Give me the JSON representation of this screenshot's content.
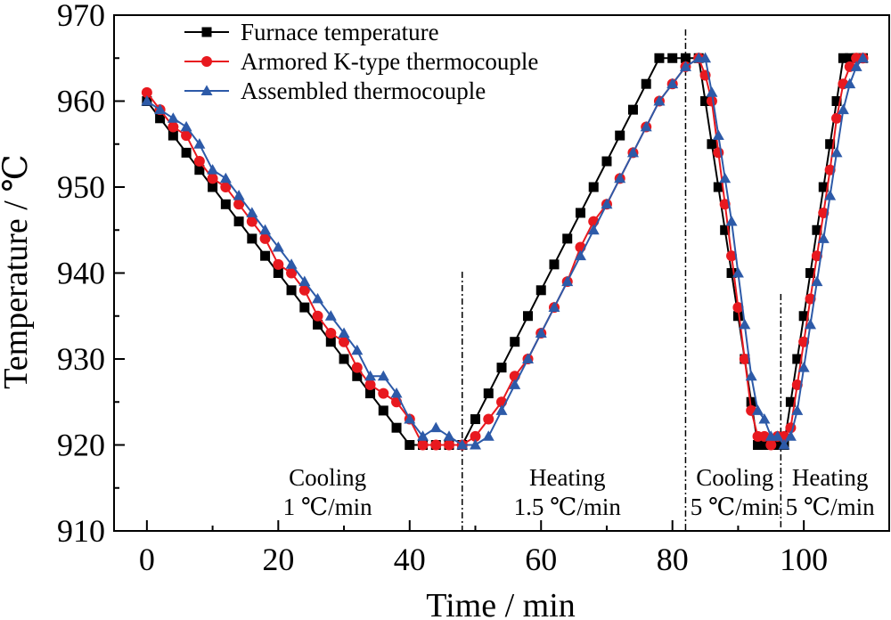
{
  "chart_data": {
    "type": "line",
    "title": "",
    "xlabel": "Time / min",
    "ylabel": "Temperature / ℃",
    "xlim": [
      -5,
      113
    ],
    "ylim": [
      910,
      970
    ],
    "xticks": [
      0,
      20,
      40,
      60,
      80,
      100
    ],
    "yticks": [
      910,
      920,
      930,
      940,
      950,
      960,
      970
    ],
    "grid": false,
    "legend_position": "top-left",
    "phase_dividers": [
      48,
      82,
      96.5
    ],
    "phase_labels": [
      {
        "line1": "Cooling",
        "line2": "1 ℃/min",
        "x": 27.5
      },
      {
        "line1": "Heating",
        "line2": "1.5 ℃/min",
        "x": 64
      },
      {
        "line1": "Cooling",
        "line2": "5 ℃/min",
        "x": 89.5
      },
      {
        "line1": "Heating",
        "line2": "5 ℃/min",
        "x": 104
      }
    ],
    "series": [
      {
        "name": "Furnace temperature",
        "color": "#000000",
        "marker": "square",
        "x": [
          0,
          2,
          4,
          6,
          8,
          10,
          12,
          14,
          16,
          18,
          20,
          22,
          24,
          26,
          28,
          30,
          32,
          34,
          36,
          38,
          40,
          42,
          44,
          46,
          48,
          50,
          52,
          54,
          56,
          58,
          60,
          62,
          64,
          66,
          68,
          70,
          72,
          74,
          76,
          78,
          80,
          82,
          84,
          85,
          86,
          87,
          88,
          89,
          90,
          91,
          92,
          93,
          94,
          95,
          96,
          97,
          98,
          99,
          100,
          101,
          102,
          103,
          104,
          105,
          106,
          107,
          108,
          109
        ],
        "y": [
          960,
          958,
          956,
          954,
          952,
          950,
          948,
          946,
          944,
          942,
          940,
          938,
          936,
          934,
          932,
          930,
          928,
          926,
          924,
          922,
          920,
          920,
          920,
          920,
          920,
          923,
          926,
          929,
          932,
          935,
          938,
          941,
          944,
          947,
          950,
          953,
          956,
          959,
          962,
          965,
          965,
          965,
          965,
          960,
          955,
          950,
          945,
          940,
          935,
          930,
          925,
          920,
          920,
          920,
          920,
          920,
          925,
          930,
          935,
          940,
          945,
          950,
          955,
          960,
          965,
          965,
          965,
          965
        ]
      },
      {
        "name": "Armored K-type thermocouple",
        "color": "#e8191f",
        "marker": "circle",
        "x": [
          0,
          2,
          4,
          6,
          8,
          10,
          12,
          14,
          16,
          18,
          20,
          22,
          24,
          26,
          28,
          30,
          32,
          34,
          36,
          38,
          40,
          42,
          44,
          46,
          48,
          50,
          52,
          54,
          56,
          58,
          60,
          62,
          64,
          66,
          68,
          70,
          72,
          74,
          76,
          78,
          80,
          82,
          84,
          85,
          86,
          87,
          88,
          89,
          90,
          91,
          92,
          93,
          94,
          95,
          96,
          97,
          98,
          99,
          100,
          101,
          102,
          103,
          104,
          105,
          106,
          107,
          108,
          109
        ],
        "y": [
          961,
          959,
          957,
          956,
          953,
          951,
          950,
          948,
          946,
          944,
          941,
          940,
          938,
          935,
          933,
          932,
          929,
          927,
          926,
          925,
          923,
          920,
          920,
          920,
          920,
          921,
          923,
          925,
          928,
          930,
          933,
          936,
          939,
          943,
          946,
          948,
          951,
          954,
          957,
          960,
          962,
          964,
          965,
          963,
          960,
          954,
          948,
          942,
          936,
          930,
          924,
          921,
          921,
          920,
          921,
          921,
          922,
          927,
          932,
          937,
          942,
          947,
          952,
          958,
          962,
          964,
          965,
          965
        ]
      },
      {
        "name": "Assembled thermocouple",
        "color": "#2d5aa8",
        "marker": "triangle",
        "x": [
          0,
          2,
          4,
          6,
          8,
          10,
          12,
          14,
          16,
          18,
          20,
          22,
          24,
          26,
          28,
          30,
          32,
          34,
          36,
          38,
          40,
          42,
          44,
          46,
          48,
          50,
          52,
          54,
          56,
          58,
          60,
          62,
          64,
          66,
          68,
          70,
          72,
          74,
          76,
          78,
          80,
          82,
          84,
          85,
          86,
          87,
          88,
          89,
          90,
          91,
          92,
          93,
          94,
          95,
          96,
          97,
          98,
          99,
          100,
          101,
          102,
          103,
          104,
          105,
          106,
          107,
          108,
          109
        ],
        "y": [
          960,
          959,
          958,
          957,
          955,
          952,
          951,
          949,
          947,
          945,
          943,
          941,
          939,
          937,
          935,
          933,
          931,
          928,
          928,
          926,
          923,
          921,
          922,
          921,
          920,
          920,
          921,
          924,
          927,
          930,
          933,
          936,
          939,
          942,
          945,
          948,
          951,
          954,
          957,
          960,
          962,
          964,
          965,
          965,
          961,
          956,
          951,
          946,
          940,
          934,
          928,
          924,
          923,
          921,
          921,
          920,
          921,
          924,
          929,
          934,
          939,
          944,
          949,
          954,
          959,
          962,
          964,
          965
        ]
      }
    ]
  }
}
